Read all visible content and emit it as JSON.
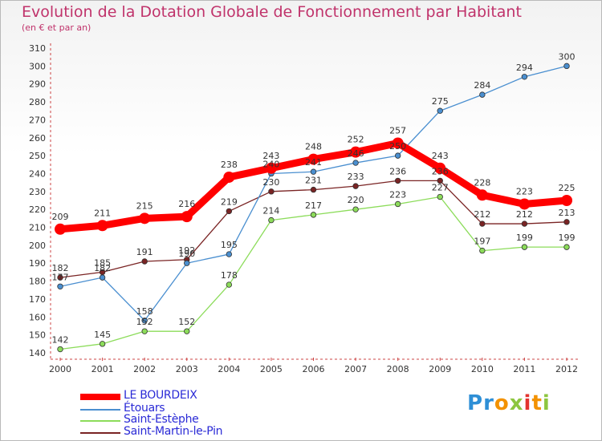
{
  "chart_data": {
    "type": "line",
    "title": "Evolution de la Dotation Globale de Fonctionnement par Habitant",
    "subtitle": "(en € et par an)",
    "categories": [
      "2000",
      "2001",
      "2002",
      "2003",
      "2004",
      "2005",
      "2006",
      "2007",
      "2008",
      "2009",
      "2010",
      "2011",
      "2012"
    ],
    "ylim": [
      140,
      310
    ],
    "yticks": [
      140,
      150,
      160,
      170,
      180,
      190,
      200,
      210,
      220,
      230,
      240,
      250,
      260,
      270,
      280,
      290,
      300,
      310
    ],
    "grid": false,
    "legend_position": "bottom-left",
    "series": [
      {
        "name": "LE BOURDEIX",
        "color": "#ff0000",
        "values": [
          209,
          211,
          215,
          216,
          238,
          243,
          248,
          252,
          257,
          243,
          228,
          223,
          225
        ]
      },
      {
        "name": "Étouars",
        "color": "#4a8fd0",
        "values": [
          177,
          182,
          158,
          190,
          195,
          240,
          241,
          246,
          250,
          275,
          284,
          294,
          300
        ]
      },
      {
        "name": "Saint-Estèphe",
        "color": "#8cdc5a",
        "values": [
          142,
          145,
          152,
          152,
          178,
          214,
          217,
          220,
          223,
          227,
          197,
          199,
          199
        ]
      },
      {
        "name": "Saint-Martin-le-Pin",
        "color": "#7a2424",
        "values": [
          182,
          185,
          191,
          192,
          219,
          230,
          231,
          233,
          236,
          236,
          212,
          212,
          213
        ]
      }
    ]
  },
  "logo": {
    "letters": [
      "P",
      "r",
      "o",
      "x",
      "i",
      "t",
      "i"
    ],
    "colors": [
      "#2e8fd6",
      "#2e8fd6",
      "#f39200",
      "#8dc63f",
      "#e3342f",
      "#f39200",
      "#8dc63f"
    ]
  }
}
